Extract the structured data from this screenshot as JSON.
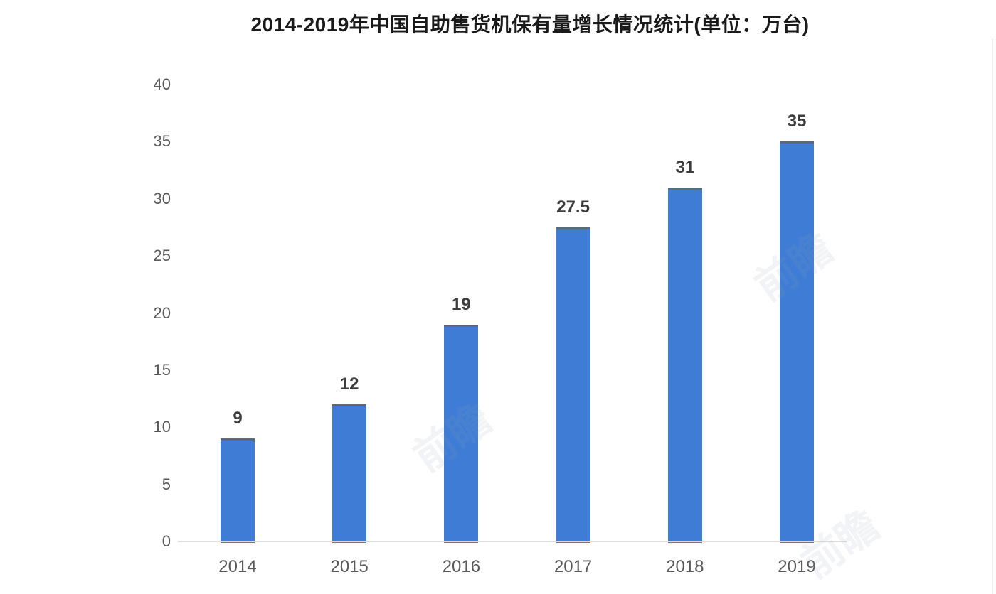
{
  "page": {
    "background_color": "#ffffff"
  },
  "chart_data": {
    "type": "bar",
    "title": "2014-2019年中国自助售货机保有量增长情况统计(单位：万台)",
    "categories": [
      "2014",
      "2015",
      "2016",
      "2017",
      "2018",
      "2019"
    ],
    "values": [
      9,
      12,
      19,
      27.5,
      31,
      35
    ],
    "value_labels": [
      "9",
      "12",
      "19",
      "27.5",
      "31",
      "35"
    ],
    "xlabel": "",
    "ylabel": "",
    "ylim": [
      0,
      40
    ],
    "yticks": [
      0,
      5,
      10,
      15,
      20,
      25,
      30,
      35,
      40
    ],
    "grid": "off",
    "legend": "none",
    "bar_color": "#3e7cd5",
    "bar_top_edge_color": "#5a6a78",
    "axis_line_color": "#dcdcdc",
    "tick_label_color": "#595959",
    "value_label_color": "#3d3d3d",
    "title_color": "#1a1a1a",
    "watermark_text": "前瞻"
  }
}
